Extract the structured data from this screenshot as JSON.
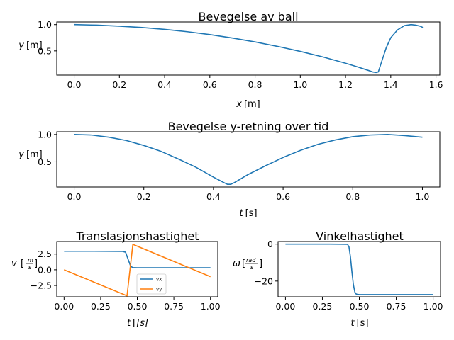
{
  "chart_data": [
    {
      "type": "line",
      "title": "Bevegelse av ball",
      "xlabel": "x",
      "xunit": "[m]",
      "ylabel": "y",
      "yunit": "[m]",
      "xlim": [
        -0.077,
        1.617
      ],
      "ylim": [
        0.04,
        1.05
      ],
      "xticks": [
        0.0,
        0.2,
        0.4,
        0.6,
        0.8,
        1.0,
        1.2,
        1.4,
        1.6
      ],
      "xtick_labels": [
        "0.0",
        "0.2",
        "0.4",
        "0.6",
        "0.8",
        "1.0",
        "1.2",
        "1.4",
        "1.6"
      ],
      "yticks": [
        0.5,
        1.0
      ],
      "ytick_labels": [
        "0.5",
        "1.0"
      ],
      "grid": false,
      "series": [
        {
          "color": "#1f77b4",
          "x": [
            0.0,
            0.1,
            0.2,
            0.3,
            0.4,
            0.5,
            0.6,
            0.7,
            0.8,
            0.9,
            1.0,
            1.1,
            1.2,
            1.25,
            1.3,
            1.32,
            1.335,
            1.345,
            1.36,
            1.38,
            1.4,
            1.43,
            1.46,
            1.49,
            1.51,
            1.53,
            1.545
          ],
          "y": [
            1.0,
            0.99,
            0.97,
            0.945,
            0.91,
            0.865,
            0.81,
            0.745,
            0.67,
            0.585,
            0.49,
            0.385,
            0.265,
            0.2,
            0.13,
            0.1,
            0.09,
            0.1,
            0.3,
            0.56,
            0.75,
            0.9,
            0.98,
            1.0,
            0.99,
            0.97,
            0.94
          ]
        }
      ]
    },
    {
      "type": "line",
      "title": "Bevegelse y-retning over tid",
      "xlabel": "t",
      "xunit": "[s]",
      "ylabel": "y",
      "yunit": "[m]",
      "xlim": [
        -0.05,
        1.05
      ],
      "ylim": [
        0.04,
        1.05
      ],
      "xticks": [
        0.0,
        0.2,
        0.4,
        0.6,
        0.8,
        1.0
      ],
      "xtick_labels": [
        "0.0",
        "0.2",
        "0.4",
        "0.6",
        "0.8",
        "1.0"
      ],
      "yticks": [
        0.5,
        1.0
      ],
      "ytick_labels": [
        "0.5",
        "1.0"
      ],
      "grid": false,
      "series": [
        {
          "color": "#1f77b4",
          "x": [
            0.0,
            0.05,
            0.1,
            0.15,
            0.2,
            0.25,
            0.3,
            0.35,
            0.4,
            0.43,
            0.44,
            0.45,
            0.46,
            0.5,
            0.55,
            0.6,
            0.65,
            0.7,
            0.75,
            0.8,
            0.85,
            0.9,
            0.95,
            1.0
          ],
          "y": [
            1.0,
            0.99,
            0.95,
            0.89,
            0.8,
            0.69,
            0.55,
            0.4,
            0.22,
            0.12,
            0.09,
            0.09,
            0.12,
            0.27,
            0.43,
            0.58,
            0.71,
            0.82,
            0.9,
            0.96,
            0.99,
            1.0,
            0.98,
            0.95
          ]
        }
      ]
    },
    {
      "type": "line",
      "title": "Translasjonshastighet",
      "xlabel": "t",
      "xunit": "[s]",
      "ylabel": "v",
      "yunit_num": "m",
      "yunit_den": "s",
      "xlim": [
        -0.05,
        1.05
      ],
      "ylim": [
        -4.3,
        4.5
      ],
      "xticks": [
        0.0,
        0.25,
        0.5,
        0.75,
        1.0
      ],
      "xtick_labels": [
        "0.00",
        "0.25",
        "0.50",
        "0.75",
        "1.00"
      ],
      "yticks": [
        -2.5,
        0.0,
        2.5
      ],
      "ytick_labels": [
        "−2.5",
        "0.0",
        "2.5"
      ],
      "grid": false,
      "legend": "lower-center",
      "series": [
        {
          "name": "vx",
          "color": "#1f77b4",
          "x": [
            0.0,
            0.2,
            0.4,
            0.42,
            0.44,
            0.455,
            0.47,
            0.5,
            0.75,
            1.0
          ],
          "y": [
            2.95,
            2.95,
            2.93,
            2.8,
            1.5,
            0.55,
            0.35,
            0.32,
            0.32,
            0.32
          ]
        },
        {
          "name": "vy",
          "color": "#ff7f0e",
          "x": [
            0.0,
            0.43,
            0.47,
            1.0
          ],
          "y": [
            0.0,
            -4.15,
            4.05,
            -1.1
          ]
        }
      ]
    },
    {
      "type": "line",
      "title": "Vinkelhastighet",
      "xlabel": "t",
      "xunit": "[s]",
      "ylabel": "ω",
      "yunit_num": "rad",
      "yunit_den": "s",
      "xlim": [
        -0.05,
        1.05
      ],
      "ylim": [
        -28.5,
        1.4
      ],
      "xticks": [
        0.0,
        0.25,
        0.5,
        0.75,
        1.0
      ],
      "xtick_labels": [
        "0.00",
        "0.25",
        "0.50",
        "0.75",
        "1.00"
      ],
      "yticks": [
        -20,
        0
      ],
      "ytick_labels": [
        "−20",
        "0"
      ],
      "grid": false,
      "series": [
        {
          "color": "#1f77b4",
          "x": [
            0.0,
            0.3,
            0.42,
            0.43,
            0.44,
            0.45,
            0.46,
            0.47,
            0.48,
            0.5,
            0.75,
            1.0
          ],
          "y": [
            0.0,
            0.0,
            -0.1,
            -1.5,
            -7,
            -15,
            -22,
            -26,
            -27.1,
            -27.3,
            -27.3,
            -27.3
          ]
        }
      ]
    }
  ]
}
